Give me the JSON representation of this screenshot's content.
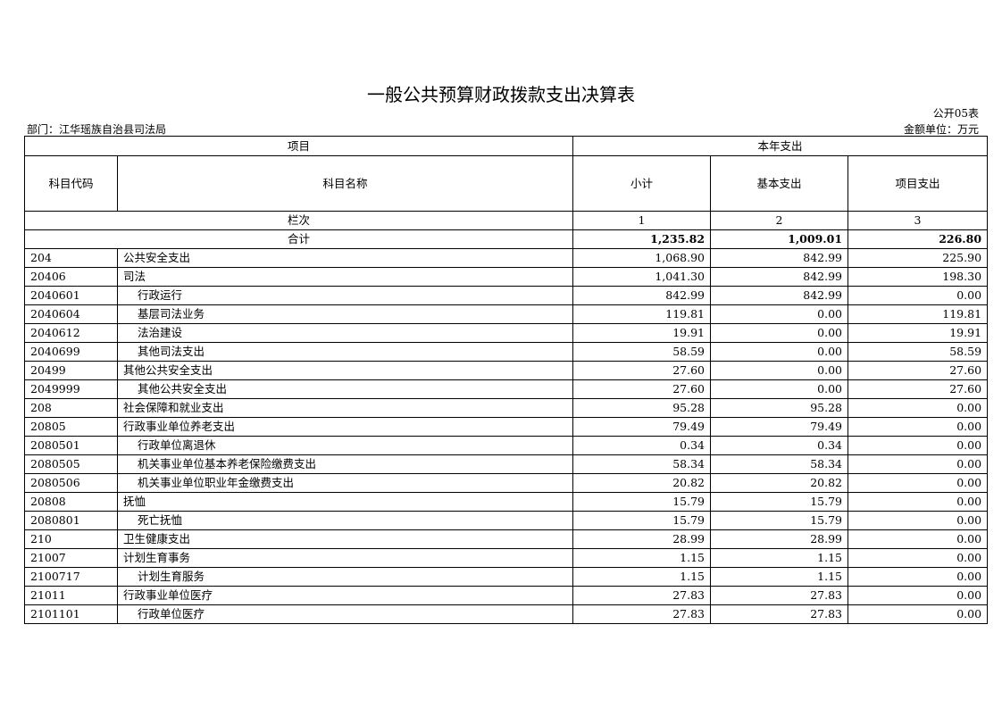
{
  "title": "一般公共预算财政拨款支出决算表",
  "form_no": "公开05表",
  "department": "部门：江华瑶族自治县司法局",
  "unit": "金额单位：万元",
  "header": {
    "item": "项目",
    "current_year": "本年支出",
    "code": "科目代码",
    "name": "科目名称",
    "subtotal": "小计",
    "basic": "基本支出",
    "project": "项目支出",
    "column_no_label": "栏次",
    "column_nos": [
      "1",
      "2",
      "3"
    ]
  },
  "total": {
    "label": "合计",
    "subtotal": "1,235.82",
    "basic": "1,009.01",
    "project": "226.80"
  },
  "rows": [
    {
      "code": "204",
      "name": "公共安全支出",
      "level": 1,
      "subtotal": "1,068.90",
      "basic": "842.99",
      "project": "225.90"
    },
    {
      "code": "20406",
      "name": "司法",
      "level": 2,
      "subtotal": "1,041.30",
      "basic": "842.99",
      "project": "198.30"
    },
    {
      "code": "2040601",
      "name": "行政运行",
      "level": 3,
      "subtotal": "842.99",
      "basic": "842.99",
      "project": "0.00"
    },
    {
      "code": "2040604",
      "name": "基层司法业务",
      "level": 3,
      "subtotal": "119.81",
      "basic": "0.00",
      "project": "119.81"
    },
    {
      "code": "2040612",
      "name": "法治建设",
      "level": 3,
      "subtotal": "19.91",
      "basic": "0.00",
      "project": "19.91"
    },
    {
      "code": "2040699",
      "name": "其他司法支出",
      "level": 3,
      "subtotal": "58.59",
      "basic": "0.00",
      "project": "58.59"
    },
    {
      "code": "20499",
      "name": "其他公共安全支出",
      "level": 2,
      "subtotal": "27.60",
      "basic": "0.00",
      "project": "27.60"
    },
    {
      "code": "2049999",
      "name": "其他公共安全支出",
      "level": 3,
      "subtotal": "27.60",
      "basic": "0.00",
      "project": "27.60"
    },
    {
      "code": "208",
      "name": "社会保障和就业支出",
      "level": 1,
      "subtotal": "95.28",
      "basic": "95.28",
      "project": "0.00"
    },
    {
      "code": "20805",
      "name": "行政事业单位养老支出",
      "level": 2,
      "subtotal": "79.49",
      "basic": "79.49",
      "project": "0.00"
    },
    {
      "code": "2080501",
      "name": "行政单位离退休",
      "level": 3,
      "subtotal": "0.34",
      "basic": "0.34",
      "project": "0.00"
    },
    {
      "code": "2080505",
      "name": "机关事业单位基本养老保险缴费支出",
      "level": 3,
      "subtotal": "58.34",
      "basic": "58.34",
      "project": "0.00"
    },
    {
      "code": "2080506",
      "name": "机关事业单位职业年金缴费支出",
      "level": 3,
      "subtotal": "20.82",
      "basic": "20.82",
      "project": "0.00"
    },
    {
      "code": "20808",
      "name": "抚恤",
      "level": 2,
      "subtotal": "15.79",
      "basic": "15.79",
      "project": "0.00"
    },
    {
      "code": "2080801",
      "name": "死亡抚恤",
      "level": 3,
      "subtotal": "15.79",
      "basic": "15.79",
      "project": "0.00"
    },
    {
      "code": "210",
      "name": "卫生健康支出",
      "level": 1,
      "subtotal": "28.99",
      "basic": "28.99",
      "project": "0.00"
    },
    {
      "code": "21007",
      "name": "计划生育事务",
      "level": 2,
      "subtotal": "1.15",
      "basic": "1.15",
      "project": "0.00"
    },
    {
      "code": "2100717",
      "name": "计划生育服务",
      "level": 3,
      "subtotal": "1.15",
      "basic": "1.15",
      "project": "0.00"
    },
    {
      "code": "21011",
      "name": "行政事业单位医疗",
      "level": 2,
      "subtotal": "27.83",
      "basic": "27.83",
      "project": "0.00"
    },
    {
      "code": "2101101",
      "name": "行政单位医疗",
      "level": 3,
      "subtotal": "27.83",
      "basic": "27.83",
      "project": "0.00"
    }
  ]
}
